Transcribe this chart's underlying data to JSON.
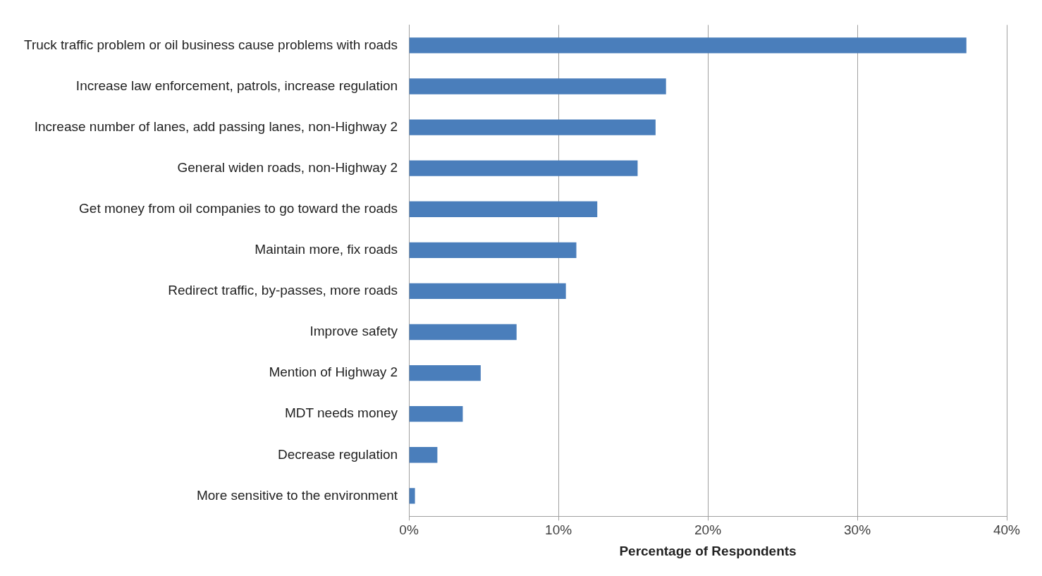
{
  "chart_data": {
    "type": "bar",
    "orientation": "horizontal",
    "xlabel": "Percentage of Respondents",
    "categories": [
      "Truck traffic problem or oil business cause problems with roads",
      "Increase law enforcement, patrols, increase regulation",
      "Increase number of lanes, add passing lanes, non-Highway 2",
      "General widen roads, non-Highway 2",
      "Get money from oil companies to go toward the roads",
      "Maintain more, fix roads",
      "Redirect traffic, by-passes, more roads",
      "Improve safety",
      "Mention of Highway 2",
      "MDT needs money",
      "Decrease regulation",
      "More sensitive to the environment"
    ],
    "values": [
      37.3,
      17.2,
      16.5,
      15.3,
      12.6,
      11.2,
      10.5,
      7.2,
      4.8,
      3.6,
      1.9,
      0.4
    ],
    "color": "#4a7ebb",
    "xlim": [
      0,
      40
    ],
    "xticks": [
      {
        "value": 0,
        "label": "0%"
      },
      {
        "value": 10,
        "label": "10%"
      },
      {
        "value": 20,
        "label": "20%"
      },
      {
        "value": 30,
        "label": "30%"
      },
      {
        "value": 40,
        "label": "40%"
      }
    ],
    "grid": "x",
    "legend": false
  }
}
